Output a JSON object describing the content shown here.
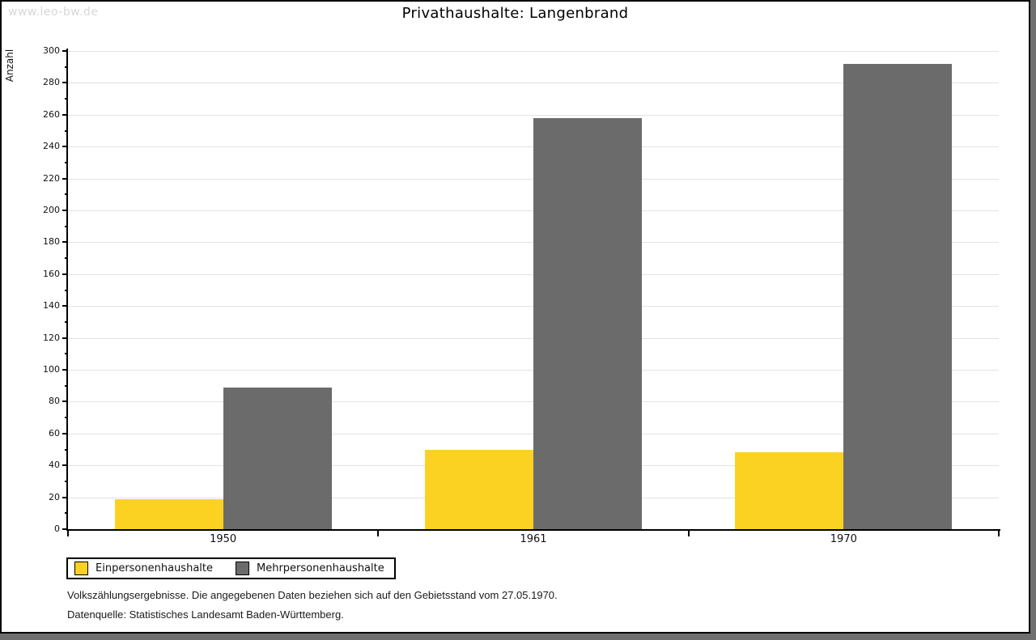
{
  "watermark": "www.leo-bw.de",
  "title": "Privathaushalte: Langenbrand",
  "chart_data": {
    "type": "bar",
    "title": "Privathaushalte: Langenbrand",
    "categories": [
      "1950",
      "1961",
      "1970"
    ],
    "series": [
      {
        "name": "Einpersonenhaushalte",
        "color": "#fbd221",
        "values": [
          19,
          50,
          48
        ]
      },
      {
        "name": "Mehrpersonenhaushalte",
        "color": "#6b6b6b",
        "values": [
          89,
          258,
          292
        ]
      }
    ],
    "xlabel": "",
    "ylabel": "Anzahl",
    "ylim": [
      0,
      300
    ],
    "ytick_major": 20,
    "ytick_minor": 10,
    "grid": true,
    "gridline_color": "#e3e3e3",
    "axis_color": "#000000",
    "legend_position": "bottom-left"
  },
  "footnotes": [
    "Volkszählungsergebnisse. Die angegebenen Daten beziehen sich auf den Gebietsstand vom 27.05.1970.",
    "Datenquelle: Statistisches Landesamt Baden-Württemberg."
  ]
}
